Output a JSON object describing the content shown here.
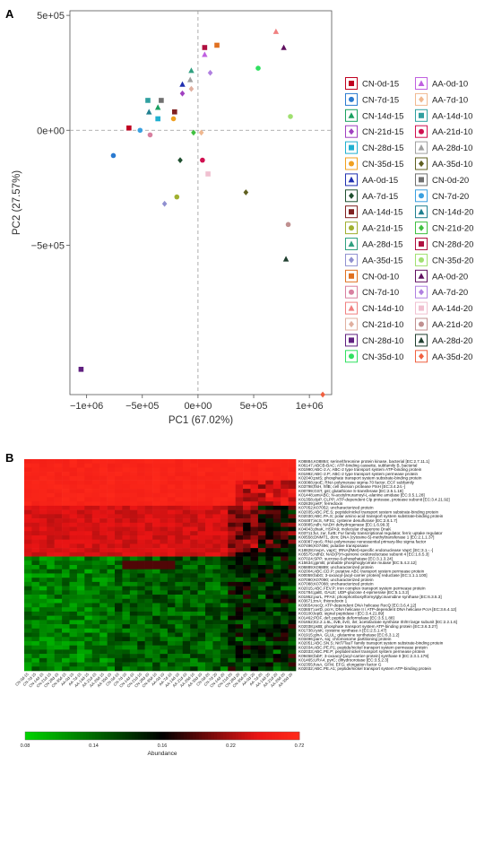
{
  "panels": {
    "a_label": "A",
    "b_label": "B"
  },
  "colors": {
    "heat_low": "#00d200",
    "heat_mid": "#000000",
    "heat_high": "#e81414",
    "heat_top_red": "#ff2a1a"
  },
  "chart_data": [
    {
      "type": "scatter",
      "xlabel": "PC1 (67.02%)",
      "ylabel": "PC2 (27.57%)",
      "xlim": [
        -1150000,
        1200000
      ],
      "ylim": [
        -1150000,
        520000
      ],
      "xticks": [
        -1000000,
        -500000,
        0,
        500000,
        1000000
      ],
      "yticks": [
        -500000,
        0,
        500000
      ],
      "xtick_labels": [
        "−1e+06",
        "−5e+05",
        "0e+00",
        "5e+05",
        "1e+06"
      ],
      "ytick_labels": [
        "−5e+05",
        "0e+00",
        "5e+05"
      ],
      "reference_lines": {
        "x": 0,
        "y": 0,
        "style": "dashed"
      },
      "grid": false,
      "legend_position": "right",
      "series": [
        {
          "name": "CN-0d-15",
          "color": "#c00020",
          "marker": "square",
          "x": -620000,
          "y": 10000
        },
        {
          "name": "CN-7d-15",
          "color": "#2a7ad0",
          "marker": "circle",
          "x": -760000,
          "y": -110000
        },
        {
          "name": "CN-14d-15",
          "color": "#1aa060",
          "marker": "triangle",
          "x": -360000,
          "y": 100000
        },
        {
          "name": "CN-21d-15",
          "color": "#a040c0",
          "marker": "diamond",
          "x": -140000,
          "y": 160000
        },
        {
          "name": "CN-28d-15",
          "color": "#20b0d0",
          "marker": "square",
          "x": -360000,
          "y": 50000
        },
        {
          "name": "CN-35d-15",
          "color": "#f0a020",
          "marker": "circle",
          "x": -220000,
          "y": 50000
        },
        {
          "name": "AA-0d-15",
          "color": "#2030b0",
          "marker": "triangle",
          "x": -140000,
          "y": 200000
        },
        {
          "name": "AA-7d-15",
          "color": "#205030",
          "marker": "diamond",
          "x": -160000,
          "y": -130000
        },
        {
          "name": "AA-14d-15",
          "color": "#802020",
          "marker": "square",
          "x": -210000,
          "y": 80000
        },
        {
          "name": "AA-21d-15",
          "color": "#a0b030",
          "marker": "circle",
          "x": -190000,
          "y": -290000
        },
        {
          "name": "AA-28d-15",
          "color": "#30a080",
          "marker": "triangle",
          "x": -60000,
          "y": 260000
        },
        {
          "name": "AA-35d-15",
          "color": "#9090d0",
          "marker": "diamond",
          "x": -300000,
          "y": -320000
        },
        {
          "name": "CN-0d-10",
          "color": "#e07020",
          "marker": "square",
          "x": 170000,
          "y": 370000
        },
        {
          "name": "CN-7d-10",
          "color": "#d880a0",
          "marker": "circle",
          "x": -430000,
          "y": -20000
        },
        {
          "name": "CN-14d-10",
          "color": "#f08080",
          "marker": "triangle",
          "x": 700000,
          "y": 430000
        },
        {
          "name": "CN-21d-10",
          "color": "#e0b0a0",
          "marker": "diamond",
          "x": -60000,
          "y": 180000
        },
        {
          "name": "CN-28d-10",
          "color": "#602080",
          "marker": "square",
          "x": -1050000,
          "y": -1040000
        },
        {
          "name": "CN-35d-10",
          "color": "#30e060",
          "marker": "circle",
          "x": 540000,
          "y": 270000
        },
        {
          "name": "AA-0d-10",
          "color": "#c060e0",
          "marker": "triangle",
          "x": 60000,
          "y": 330000
        },
        {
          "name": "AA-7d-10",
          "color": "#f0b890",
          "marker": "diamond",
          "x": 30000,
          "y": -10000
        },
        {
          "name": "AA-14d-10",
          "color": "#30a0a0",
          "marker": "square",
          "x": -450000,
          "y": 130000
        },
        {
          "name": "AA-21d-10",
          "color": "#d01050",
          "marker": "circle",
          "x": 40000,
          "y": -130000
        },
        {
          "name": "AA-28d-10",
          "color": "#a0a0a0",
          "marker": "triangle",
          "x": -70000,
          "y": 220000
        },
        {
          "name": "AA-35d-10",
          "color": "#606020",
          "marker": "diamond",
          "x": 430000,
          "y": -270000
        },
        {
          "name": "CN-0d-20",
          "color": "#707070",
          "marker": "square",
          "x": -330000,
          "y": 130000
        },
        {
          "name": "CN-7d-20",
          "color": "#3aa0e0",
          "marker": "circle",
          "x": -520000,
          "y": 0
        },
        {
          "name": "CN-14d-20",
          "color": "#208090",
          "marker": "triangle",
          "x": -440000,
          "y": 80000
        },
        {
          "name": "CN-21d-20",
          "color": "#40c040",
          "marker": "diamond",
          "x": -40000,
          "y": -10000
        },
        {
          "name": "CN-28d-20",
          "color": "#b01040",
          "marker": "square",
          "x": 60000,
          "y": 360000
        },
        {
          "name": "CN-35d-20",
          "color": "#a0e070",
          "marker": "circle",
          "x": 830000,
          "y": 60000
        },
        {
          "name": "AA-0d-20",
          "color": "#601060",
          "marker": "triangle",
          "x": 770000,
          "y": 360000
        },
        {
          "name": "AA-7d-20",
          "color": "#b080e0",
          "marker": "diamond",
          "x": 110000,
          "y": 250000
        },
        {
          "name": "AA-14d-20",
          "color": "#f0c0d0",
          "marker": "square",
          "x": 90000,
          "y": -190000
        },
        {
          "name": "AA-21d-20",
          "color": "#c09090",
          "marker": "circle",
          "x": 810000,
          "y": -410000
        },
        {
          "name": "AA-28d-20",
          "color": "#204030",
          "marker": "triangle",
          "x": 790000,
          "y": -560000
        },
        {
          "name": "AA-35d-20",
          "color": "#f06040",
          "marker": "diamond",
          "x": 1120000,
          "y": -1150000
        }
      ]
    },
    {
      "type": "heatmap",
      "colorbar_title": "Abundance",
      "colorbar_ticks": [
        0.08,
        0.14,
        0.16,
        0.22,
        0.72
      ],
      "columns": [
        "CN-0d-15",
        "CN-7d-15",
        "CN-14d-15",
        "CN-21d-15",
        "CN-28d-15",
        "CN-35d-15",
        "AA-0d-15",
        "AA-7d-15",
        "AA-14d-15",
        "AA-21d-15",
        "AA-28d-15",
        "AA-35d-15",
        "CN-0d-10",
        "CN-7d-10",
        "CN-14d-10",
        "CN-21d-10",
        "CN-28d-10",
        "CN-35d-10",
        "AA-0d-10",
        "AA-7d-10",
        "AA-14d-10",
        "AA-21d-10",
        "AA-28d-10",
        "AA-35d-10",
        "CN-0d-20",
        "CN-7d-20",
        "CN-14d-20",
        "CN-21d-20",
        "CN-28d-20",
        "CN-35d-20",
        "AA-0d-20",
        "AA-7d-20",
        "AA-14d-20",
        "AA-21d-20",
        "AA-28d-20",
        "AA-35d-20"
      ],
      "rows": [
        "K08884,K08884; serine/threonine protein kinase, bacterial [EC:2.7.11.1]",
        "K06147;ABCB-BAC; ATP-binding cassette, subfamily B, bacterial",
        "K01990;ABC-2.A; ABC-2 type transport system ATP-binding protein",
        "K01992;ABC-2.P; ABC-2 type transport system permease protein",
        "K02040;pstS; phosphate transport system substrate-binding protein",
        "K03088;rpoE; RNA polymerase sigma-70 factor, ECF subfamily",
        "K03798;ftsH, hflB; cell division protease FtsH [EC:3.4.24.-]",
        "K00799;GST, gst; glutathione S-transferase [EC:2.5.1.18]",
        "K01448;amiABC; N-acetylmuramoyl-L-alanine amidase [EC:3.5.1.28]",
        "K01358;clpP, CLPP; ATP-dependent Clp protease, protease subunit [EC:3.4.21.92]",
        "K02639;petF; ferredoxin",
        "K07052;K07052; uncharacterized protein",
        "K02035;ABC.PE.S; peptide/nickel transport system substrate-binding protein",
        "K02030;ABC.PA.S; polar amino acid transport system substrate-binding protein",
        "K04487;iscS, NFS1; cysteine desulfurase [EC:2.8.1.7]",
        "K03885;ndh; NADH dehydrogenase [EC:1.6.99.3]",
        "K04043;dnaK, HSPA9; molecular chaperone DnaK",
        "K03711;fur, zur, furB; Fur family transcriptional regulator, ferric uptake regulator",
        "K00558;DNMT1, dcm; DNA (cytosine-5)-methyltransferase 1 [EC:2.1.1.37]",
        "K03087;rpoS; RNA polymerase nonessential primary-like sigma factor",
        "K07496;K07496; putative transposase",
        "K18828;mvpA, vapC; tRNA(fMet)-specific endonuclease VapC [EC:3.1.-.-]",
        "K05575;ndhD; NAD(P)H-quinone oxidoreductase subunit 4 [EC:1.6.5.3]",
        "K07024;SPP; sucrose-6-phosphatase [EC:3.1.3.24]",
        "K15634;gpmB; probable phosphoglycerate mutase [EC:5.4.2.12]",
        "K06889;K06889; uncharacterized protein",
        "K02004;ABC.CD.P; putative ABC transport system permease protein",
        "K00059;fabG; 3-oxoacyl-[acyl-carrier protein] reductase [EC:1.1.1.100]",
        "K07090;K07090; uncharacterized protein",
        "K07088;K07088; uncharacterized protein",
        "K02015;ABC.FEV.P; iron complex transport system permease protein",
        "K01784;galE, GALE; UDP-glucose 4-epimerase [EC:5.1.3.2]",
        "K01952;purL, PFAS; phosphoribosylformylglycinamidine synthase [EC:6.3.5.3]",
        "K03671;trxA; thioredoxin 1",
        "K03654;recQ; ATP-dependent DNA helicase RecQ [EC:3.6.4.12]",
        "K03657;uvrD, pcrA; DNA helicase II / ATP-dependent DNA helicase PcrA [EC:3.6.4.12]",
        "K03100;lepB; signal peptidase I [EC:3.4.21.89]",
        "K01462;PDF, def; peptide deformylase [EC:3.5.1.88]",
        "K01652;E2.2.1.6L, ilvB, ilvG, ilvI; acetolactate synthase I/II/III large subunit [EC:2.2.1.6]",
        "K02038;pstB; phosphate transport system ATP-binding protein [EC:3.6.3.27]",
        "K01738;cysK; cysteine synthase A [EC:2.5.1.47]",
        "K01915;glnA, GLUL; glutamine synthetase [EC:6.3.1.2]",
        "K03496;parA, soj; chromosome partitioning protein",
        "K02051;ABC.SN.S; NitT/TauT family transport system substrate-binding protein",
        "K02034;ABC.PE.P1; peptide/nickel transport system permease protein",
        "K02033;ABC.PE.P; peptide/nickel transport system permease protein",
        "K09458;fabF; 3-oxoacyl-[acyl-carrier-protein] synthase II [EC:2.3.1.179]",
        "K01465;URA4, pyrC; dihydroorotase [EC:3.5.2.3]",
        "K02355;fusA, GFM, EFG; elongation factor G",
        "K02032;ABC.PE.A1; peptide/nickel transport system ATP-binding protein"
      ],
      "block_structure": "upper rows high abundance (red), lower rows low abundance (green/black)"
    }
  ]
}
